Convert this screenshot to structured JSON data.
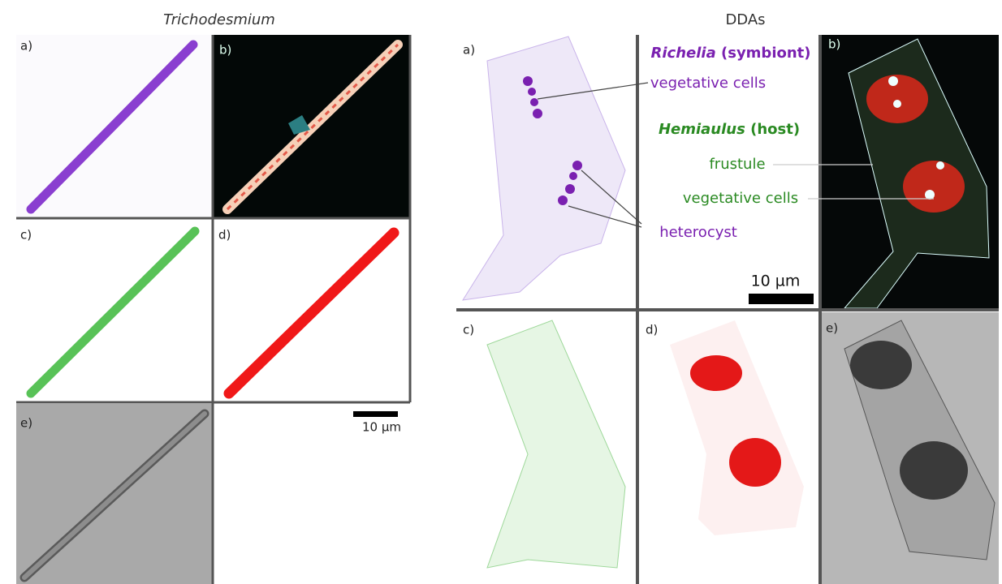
{
  "trichodesmium": {
    "title": "Trichodesmium",
    "panels": [
      "a)",
      "b)",
      "c)",
      "d)",
      "e)"
    ],
    "scale_bar": "10 µm"
  },
  "ddas": {
    "title": "DDAs",
    "panels": [
      "a)",
      "b)",
      "c)",
      "d)",
      "e)"
    ],
    "symbiont": {
      "genus": "Richelia",
      "role": "(symbiont)"
    },
    "host": {
      "genus": "Hemiaulus",
      "role": "(host)"
    },
    "labels": {
      "vegetative_cells_a": "vegetative cells",
      "heterocyst": "heterocyst",
      "frustule": "frustule",
      "vegetative_cells_b": "vegetative cells"
    },
    "scale_bar": "10 µm"
  }
}
